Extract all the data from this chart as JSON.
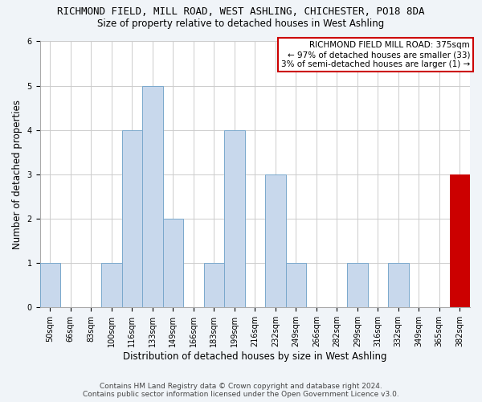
{
  "title": "RICHMOND FIELD, MILL ROAD, WEST ASHLING, CHICHESTER, PO18 8DA",
  "subtitle": "Size of property relative to detached houses in West Ashling",
  "xlabel": "Distribution of detached houses by size in West Ashling",
  "ylabel": "Number of detached properties",
  "footer_line1": "Contains HM Land Registry data © Crown copyright and database right 2024.",
  "footer_line2": "Contains public sector information licensed under the Open Government Licence v3.0.",
  "bar_labels": [
    "50sqm",
    "66sqm",
    "83sqm",
    "100sqm",
    "116sqm",
    "133sqm",
    "149sqm",
    "166sqm",
    "183sqm",
    "199sqm",
    "216sqm",
    "232sqm",
    "249sqm",
    "266sqm",
    "282sqm",
    "299sqm",
    "316sqm",
    "332sqm",
    "349sqm",
    "365sqm",
    "382sqm"
  ],
  "bar_values": [
    1,
    0,
    0,
    1,
    4,
    5,
    2,
    0,
    1,
    4,
    0,
    3,
    1,
    0,
    0,
    1,
    0,
    1,
    0,
    0,
    3
  ],
  "bar_color_normal": "#c8d8ec",
  "bar_color_highlight": "#cc0000",
  "highlight_index": 20,
  "bar_edge_color": "#7aa8cc",
  "highlight_edge_color": "#cc0000",
  "ylim": [
    0,
    6
  ],
  "yticks": [
    0,
    1,
    2,
    3,
    4,
    5,
    6
  ],
  "annotation_box_text_line1": "RICHMOND FIELD MILL ROAD: 375sqm",
  "annotation_box_text_line2": "← 97% of detached houses are smaller (33)",
  "annotation_box_text_line3": "3% of semi-detached houses are larger (1) →",
  "annotation_box_edge_color": "#cc0000",
  "background_color": "#f0f4f8",
  "plot_background_color": "#ffffff",
  "grid_color": "#cccccc",
  "title_fontsize": 9.0,
  "subtitle_fontsize": 8.5,
  "axis_label_fontsize": 8.5,
  "tick_fontsize": 7.0,
  "annotation_fontsize": 7.5,
  "footer_fontsize": 6.5
}
